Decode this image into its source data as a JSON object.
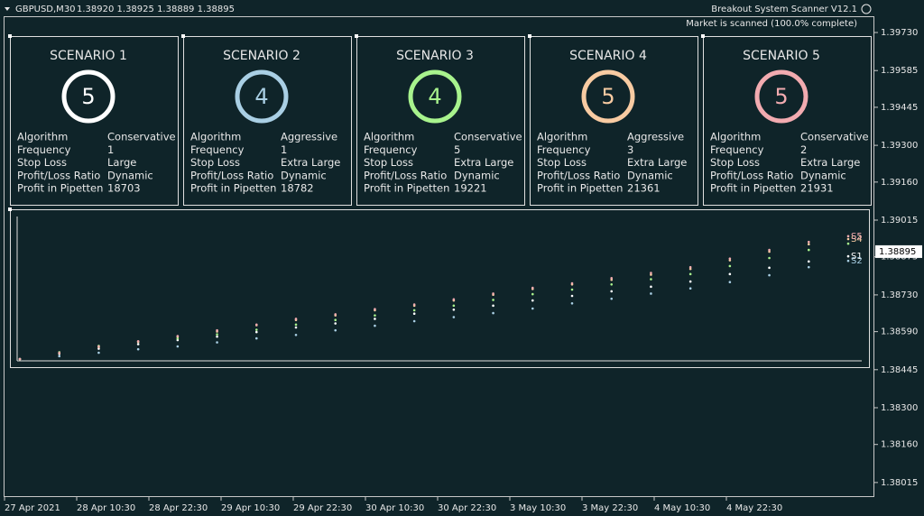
{
  "header": {
    "symbol": "GBPUSD,M30",
    "quote": "1.38920 1.38925 1.38889 1.38895",
    "indicator": "Breakout System Scanner V12.1",
    "status": "Market is scanned (100.0% complete)"
  },
  "price_axis": {
    "ylim": [
      1.37963,
      1.39792
    ],
    "ticks": [
      {
        "value": 1.3973,
        "label": "1.39730"
      },
      {
        "value": 1.39585,
        "label": "1.39585"
      },
      {
        "value": 1.39445,
        "label": "1.39445"
      },
      {
        "value": 1.393,
        "label": "1.39300"
      },
      {
        "value": 1.3916,
        "label": "1.39160"
      },
      {
        "value": 1.39015,
        "label": "1.39015"
      },
      {
        "value": 1.38875,
        "label": "1.38875"
      },
      {
        "value": 1.3873,
        "label": "1.38730"
      },
      {
        "value": 1.3859,
        "label": "1.38590"
      },
      {
        "value": 1.38445,
        "label": "1.38445"
      },
      {
        "value": 1.383,
        "label": "1.38300"
      },
      {
        "value": 1.3816,
        "label": "1.38160"
      },
      {
        "value": 1.38015,
        "label": "1.38015"
      }
    ],
    "current": {
      "value": 1.38895,
      "label": "1.38895"
    }
  },
  "time_axis": [
    "27 Apr 2021",
    "28 Apr 10:30",
    "28 Apr 22:30",
    "29 Apr 10:30",
    "29 Apr 22:30",
    "30 Apr 10:30",
    "30 Apr 22:30",
    "3 May 10:30",
    "3 May 22:30",
    "4 May 10:30",
    "4 May 22:30"
  ],
  "scenarios": [
    {
      "title": "SCENARIO 1",
      "count": "5",
      "color": "#ffffff",
      "rows": [
        {
          "label": "Algorithm",
          "value": "Conservative"
        },
        {
          "label": "Frequency",
          "value": "1"
        },
        {
          "label": "Stop Loss",
          "value": "Large"
        },
        {
          "label": "Profit/Loss Ratio",
          "value": "Dynamic"
        },
        {
          "label": "Profit in Pipetten",
          "value": "18703"
        }
      ]
    },
    {
      "title": "SCENARIO 2",
      "count": "4",
      "color": "#a9cfe4",
      "rows": [
        {
          "label": "Algorithm",
          "value": "Aggressive"
        },
        {
          "label": "Frequency",
          "value": "1"
        },
        {
          "label": "Stop Loss",
          "value": "Extra Large"
        },
        {
          "label": "Profit/Loss Ratio",
          "value": "Dynamic"
        },
        {
          "label": "Profit in Pipetten",
          "value": "18782"
        }
      ]
    },
    {
      "title": "SCENARIO 3",
      "count": "4",
      "color": "#a8f38d",
      "rows": [
        {
          "label": "Algorithm",
          "value": "Conservative"
        },
        {
          "label": "Frequency",
          "value": "5"
        },
        {
          "label": "Stop Loss",
          "value": "Extra Large"
        },
        {
          "label": "Profit/Loss Ratio",
          "value": "Dynamic"
        },
        {
          "label": "Profit in Pipetten",
          "value": "19221"
        }
      ]
    },
    {
      "title": "SCENARIO 4",
      "count": "5",
      "color": "#f8cba2",
      "rows": [
        {
          "label": "Algorithm",
          "value": "Aggressive"
        },
        {
          "label": "Frequency",
          "value": "3"
        },
        {
          "label": "Stop Loss",
          "value": "Extra Large"
        },
        {
          "label": "Profit/Loss Ratio",
          "value": "Dynamic"
        },
        {
          "label": "Profit in Pipetten",
          "value": "21361"
        }
      ]
    },
    {
      "title": "SCENARIO 5",
      "count": "5",
      "color": "#f2abb0",
      "rows": [
        {
          "label": "Algorithm",
          "value": "Conservative"
        },
        {
          "label": "Frequency",
          "value": "2"
        },
        {
          "label": "Stop Loss",
          "value": "Extra Large"
        },
        {
          "label": "Profit/Loss Ratio",
          "value": "Dynamic"
        },
        {
          "label": "Profit in Pipetten",
          "value": "21931"
        }
      ]
    }
  ],
  "equity": {
    "ylim": [
      0,
      22000
    ],
    "series": [
      {
        "name": "S1",
        "color": "#ffffff",
        "values": [
          0,
          900,
          1800,
          2600,
          3300,
          3900,
          4700,
          5500,
          6200,
          7000,
          7900,
          8600,
          9300,
          10200,
          11000,
          11800,
          12600,
          13500,
          14800,
          15900,
          17000,
          17900
        ]
      },
      {
        "name": "S2",
        "color": "#a9cfe4",
        "values": [
          0,
          500,
          1100,
          1700,
          2200,
          2900,
          3600,
          4200,
          5000,
          5800,
          6600,
          7300,
          8000,
          8800,
          9700,
          10500,
          11400,
          12300,
          13400,
          14600,
          16000,
          17100
        ]
      },
      {
        "color": "#a8f38d",
        "values": [
          0,
          1200,
          2300,
          3000,
          3600,
          4300,
          5100,
          6000,
          6800,
          7600,
          8500,
          9300,
          10300,
          11300,
          12100,
          13000,
          13900,
          14800,
          16200,
          17600,
          19000,
          20100
        ]
      },
      {
        "name": "S4",
        "color": "#f8cba2",
        "values": [
          0,
          1000,
          2100,
          3000,
          3900,
          4800,
          5900,
          6800,
          7600,
          8500,
          9300,
          10200,
          11200,
          12200,
          13000,
          13800,
          14700,
          15700,
          17200,
          18700,
          20000,
          20900
        ]
      },
      {
        "name": "S5",
        "color": "#f2abb0",
        "values": [
          0,
          1100,
          2200,
          3100,
          4000,
          5000,
          6000,
          7000,
          7800,
          8700,
          9500,
          10400,
          11400,
          12400,
          13200,
          14100,
          15000,
          16000,
          17500,
          19000,
          20400,
          21400
        ]
      }
    ]
  }
}
